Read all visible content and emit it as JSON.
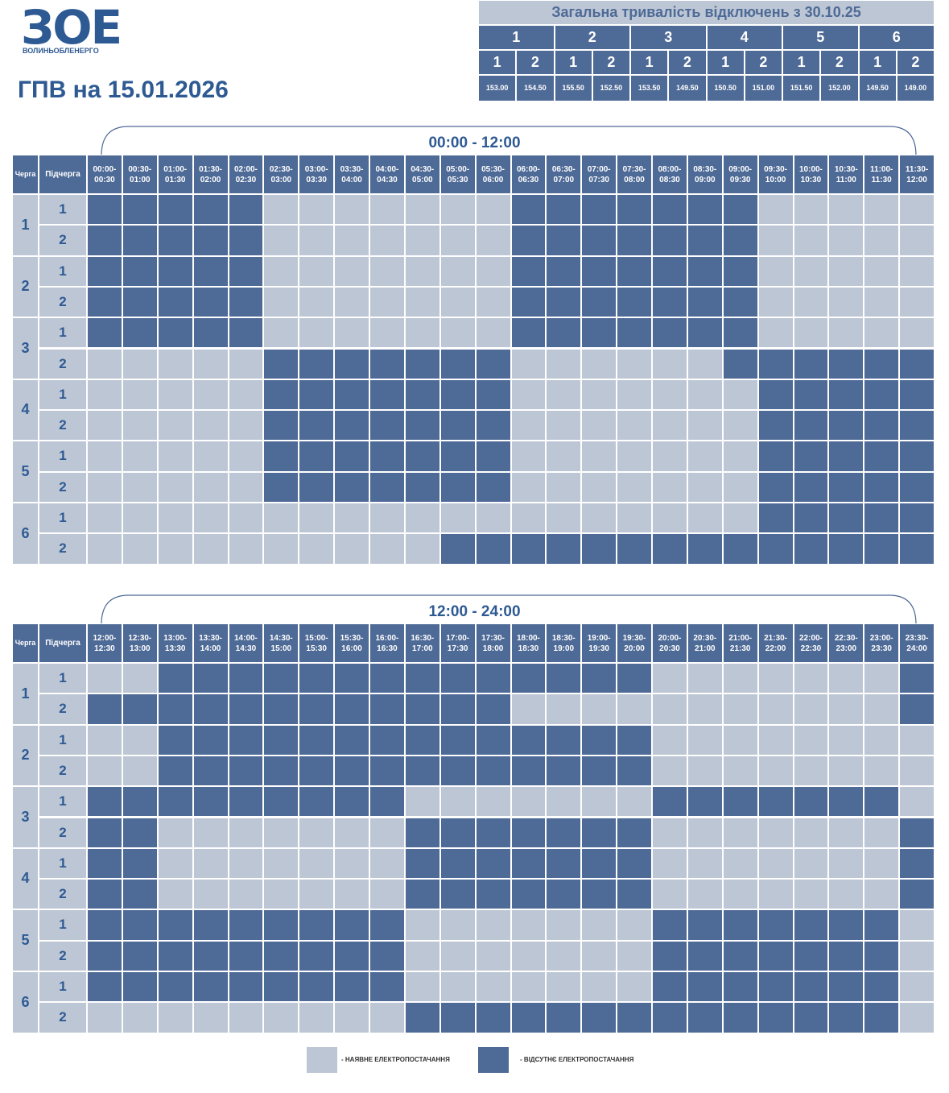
{
  "logo": {
    "mark": "ЗОЕ",
    "name": "ВОЛИНЬОБЛЕНЕРГО"
  },
  "title": "ГПВ на 15.01.2026",
  "summary": {
    "title": "Загальна тривалість відключень з 30.10.25",
    "queues": [
      {
        "label": "1",
        "subqueues": [
          "1",
          "2"
        ],
        "hours": [
          "153.00",
          "154.50"
        ]
      },
      {
        "label": "2",
        "subqueues": [
          "1",
          "2"
        ],
        "hours": [
          "155.50",
          "152.50"
        ]
      },
      {
        "label": "3",
        "subqueues": [
          "1",
          "2"
        ],
        "hours": [
          "153.50",
          "149.50"
        ]
      },
      {
        "label": "4",
        "subqueues": [
          "1",
          "2"
        ],
        "hours": [
          "150.50",
          "151.00"
        ]
      },
      {
        "label": "5",
        "subqueues": [
          "1",
          "2"
        ],
        "hours": [
          "151.50",
          "152.00"
        ]
      },
      {
        "label": "6",
        "subqueues": [
          "1",
          "2"
        ],
        "hours": [
          "149.50",
          "149.00"
        ]
      }
    ]
  },
  "schedules": [
    {
      "range": "00:00 - 12:00",
      "queue_header": "Черга",
      "subqueue_header": "Підчерга",
      "slots": [
        "00:00-00:30",
        "00:30-01:00",
        "01:00-01:30",
        "01:30-02:00",
        "02:00-02:30",
        "02:30-03:00",
        "03:00-03:30",
        "03:30-04:00",
        "04:00-04:30",
        "04:30-05:00",
        "05:00-05:30",
        "05:30-06:00",
        "06:00-06:30",
        "06:30-07:00",
        "07:00-07:30",
        "07:30-08:00",
        "08:00-08:30",
        "08:30-09:00",
        "09:00-09:30",
        "09:30-10:00",
        "10:00-10:30",
        "10:30-11:00",
        "11:00-11:30",
        "11:30-12:00"
      ],
      "queues": [
        {
          "label": "1",
          "subqueues": [
            {
              "label": "1",
              "outage": [
                1,
                1,
                1,
                1,
                1,
                0,
                0,
                0,
                0,
                0,
                0,
                0,
                1,
                1,
                1,
                1,
                1,
                1,
                1,
                0,
                0,
                0,
                0,
                0
              ]
            },
            {
              "label": "2",
              "outage": [
                1,
                1,
                1,
                1,
                1,
                0,
                0,
                0,
                0,
                0,
                0,
                0,
                1,
                1,
                1,
                1,
                1,
                1,
                1,
                0,
                0,
                0,
                0,
                0
              ]
            }
          ]
        },
        {
          "label": "2",
          "subqueues": [
            {
              "label": "1",
              "outage": [
                1,
                1,
                1,
                1,
                1,
                0,
                0,
                0,
                0,
                0,
                0,
                0,
                1,
                1,
                1,
                1,
                1,
                1,
                1,
                0,
                0,
                0,
                0,
                0
              ]
            },
            {
              "label": "2",
              "outage": [
                1,
                1,
                1,
                1,
                1,
                0,
                0,
                0,
                0,
                0,
                0,
                0,
                1,
                1,
                1,
                1,
                1,
                1,
                1,
                0,
                0,
                0,
                0,
                0
              ]
            }
          ]
        },
        {
          "label": "3",
          "subqueues": [
            {
              "label": "1",
              "outage": [
                1,
                1,
                1,
                1,
                1,
                0,
                0,
                0,
                0,
                0,
                0,
                0,
                1,
                1,
                1,
                1,
                1,
                1,
                1,
                0,
                0,
                0,
                0,
                0
              ]
            },
            {
              "label": "2",
              "outage": [
                0,
                0,
                0,
                0,
                0,
                1,
                1,
                1,
                1,
                1,
                1,
                1,
                0,
                0,
                0,
                0,
                0,
                0,
                1,
                1,
                1,
                1,
                1,
                1
              ]
            }
          ]
        },
        {
          "label": "4",
          "subqueues": [
            {
              "label": "1",
              "outage": [
                0,
                0,
                0,
                0,
                0,
                1,
                1,
                1,
                1,
                1,
                1,
                1,
                0,
                0,
                0,
                0,
                0,
                0,
                0,
                1,
                1,
                1,
                1,
                1
              ]
            },
            {
              "label": "2",
              "outage": [
                0,
                0,
                0,
                0,
                0,
                1,
                1,
                1,
                1,
                1,
                1,
                1,
                0,
                0,
                0,
                0,
                0,
                0,
                0,
                1,
                1,
                1,
                1,
                1
              ]
            }
          ]
        },
        {
          "label": "5",
          "subqueues": [
            {
              "label": "1",
              "outage": [
                0,
                0,
                0,
                0,
                0,
                1,
                1,
                1,
                1,
                1,
                1,
                1,
                0,
                0,
                0,
                0,
                0,
                0,
                0,
                1,
                1,
                1,
                1,
                1
              ]
            },
            {
              "label": "2",
              "outage": [
                0,
                0,
                0,
                0,
                0,
                1,
                1,
                1,
                1,
                1,
                1,
                1,
                0,
                0,
                0,
                0,
                0,
                0,
                0,
                1,
                1,
                1,
                1,
                1
              ]
            }
          ]
        },
        {
          "label": "6",
          "subqueues": [
            {
              "label": "1",
              "outage": [
                0,
                0,
                0,
                0,
                0,
                0,
                0,
                0,
                0,
                0,
                0,
                0,
                0,
                0,
                0,
                0,
                0,
                0,
                0,
                1,
                1,
                1,
                1,
                1
              ]
            },
            {
              "label": "2",
              "outage": [
                0,
                0,
                0,
                0,
                0,
                0,
                0,
                0,
                0,
                0,
                1,
                1,
                1,
                1,
                1,
                1,
                1,
                1,
                1,
                1,
                1,
                1,
                1,
                1
              ]
            }
          ]
        }
      ]
    },
    {
      "range": "12:00 - 24:00",
      "queue_header": "Черга",
      "subqueue_header": "Підчерга",
      "slots": [
        "12:00-12:30",
        "12:30-13:00",
        "13:00-13:30",
        "13:30-14:00",
        "14:00-14:30",
        "14:30-15:00",
        "15:00-15:30",
        "15:30-16:00",
        "16:00-16:30",
        "16:30-17:00",
        "17:00-17:30",
        "17:30-18:00",
        "18:00-18:30",
        "18:30-19:00",
        "19:00-19:30",
        "19:30-20:00",
        "20:00-20:30",
        "20:30-21:00",
        "21:00-21:30",
        "21:30-22:00",
        "22:00-22:30",
        "22:30-23:00",
        "23:00-23:30",
        "23:30-24:00"
      ],
      "queues": [
        {
          "label": "1",
          "subqueues": [
            {
              "label": "1",
              "outage": [
                0,
                0,
                1,
                1,
                1,
                1,
                1,
                1,
                1,
                1,
                1,
                1,
                1,
                1,
                1,
                1,
                0,
                0,
                0,
                0,
                0,
                0,
                0,
                1
              ]
            },
            {
              "label": "2",
              "outage": [
                1,
                1,
                1,
                1,
                1,
                1,
                1,
                1,
                1,
                1,
                1,
                1,
                0,
                0,
                0,
                0,
                0,
                0,
                0,
                0,
                0,
                0,
                0,
                1
              ]
            }
          ]
        },
        {
          "label": "2",
          "subqueues": [
            {
              "label": "1",
              "outage": [
                0,
                0,
                1,
                1,
                1,
                1,
                1,
                1,
                1,
                1,
                1,
                1,
                1,
                1,
                1,
                1,
                0,
                0,
                0,
                0,
                0,
                0,
                0,
                0
              ]
            },
            {
              "label": "2",
              "outage": [
                0,
                0,
                1,
                1,
                1,
                1,
                1,
                1,
                1,
                1,
                1,
                1,
                1,
                1,
                1,
                1,
                0,
                0,
                0,
                0,
                0,
                0,
                0,
                0
              ]
            }
          ]
        },
        {
          "label": "3",
          "subqueues": [
            {
              "label": "1",
              "outage": [
                1,
                1,
                1,
                1,
                1,
                1,
                1,
                1,
                1,
                0,
                0,
                0,
                0,
                0,
                0,
                0,
                1,
                1,
                1,
                1,
                1,
                1,
                1,
                0
              ]
            },
            {
              "label": "2",
              "outage": [
                1,
                1,
                0,
                0,
                0,
                0,
                0,
                0,
                0,
                1,
                1,
                1,
                1,
                1,
                1,
                1,
                0,
                0,
                0,
                0,
                0,
                0,
                0,
                1
              ]
            }
          ]
        },
        {
          "label": "4",
          "subqueues": [
            {
              "label": "1",
              "outage": [
                1,
                1,
                0,
                0,
                0,
                0,
                0,
                0,
                0,
                1,
                1,
                1,
                1,
                1,
                1,
                1,
                0,
                0,
                0,
                0,
                0,
                0,
                0,
                1
              ]
            },
            {
              "label": "2",
              "outage": [
                1,
                1,
                0,
                0,
                0,
                0,
                0,
                0,
                0,
                1,
                1,
                1,
                1,
                1,
                1,
                1,
                0,
                0,
                0,
                0,
                0,
                0,
                0,
                1
              ]
            }
          ]
        },
        {
          "label": "5",
          "subqueues": [
            {
              "label": "1",
              "outage": [
                1,
                1,
                1,
                1,
                1,
                1,
                1,
                1,
                1,
                0,
                0,
                0,
                0,
                0,
                0,
                0,
                1,
                1,
                1,
                1,
                1,
                1,
                1,
                0
              ]
            },
            {
              "label": "2",
              "outage": [
                1,
                1,
                1,
                1,
                1,
                1,
                1,
                1,
                1,
                0,
                0,
                0,
                0,
                0,
                0,
                0,
                1,
                1,
                1,
                1,
                1,
                1,
                1,
                0
              ]
            }
          ]
        },
        {
          "label": "6",
          "subqueues": [
            {
              "label": "1",
              "outage": [
                1,
                1,
                1,
                1,
                1,
                1,
                1,
                1,
                1,
                0,
                0,
                0,
                0,
                0,
                0,
                0,
                1,
                1,
                1,
                1,
                1,
                1,
                1,
                0
              ]
            },
            {
              "label": "2",
              "outage": [
                0,
                0,
                0,
                0,
                0,
                0,
                0,
                0,
                0,
                1,
                1,
                1,
                1,
                1,
                1,
                1,
                1,
                1,
                1,
                1,
                1,
                1,
                1,
                0
              ]
            }
          ]
        }
      ]
    }
  ],
  "legend": [
    {
      "label": "- НАЯВНЕ ЕЛЕКТРОПОСТАЧАННЯ",
      "color": "#bcc6d4"
    },
    {
      "label": "- ВІДСУТНЄ ЕЛЕКТРОПОСТАЧАННЯ",
      "color": "#4e6a96"
    }
  ]
}
